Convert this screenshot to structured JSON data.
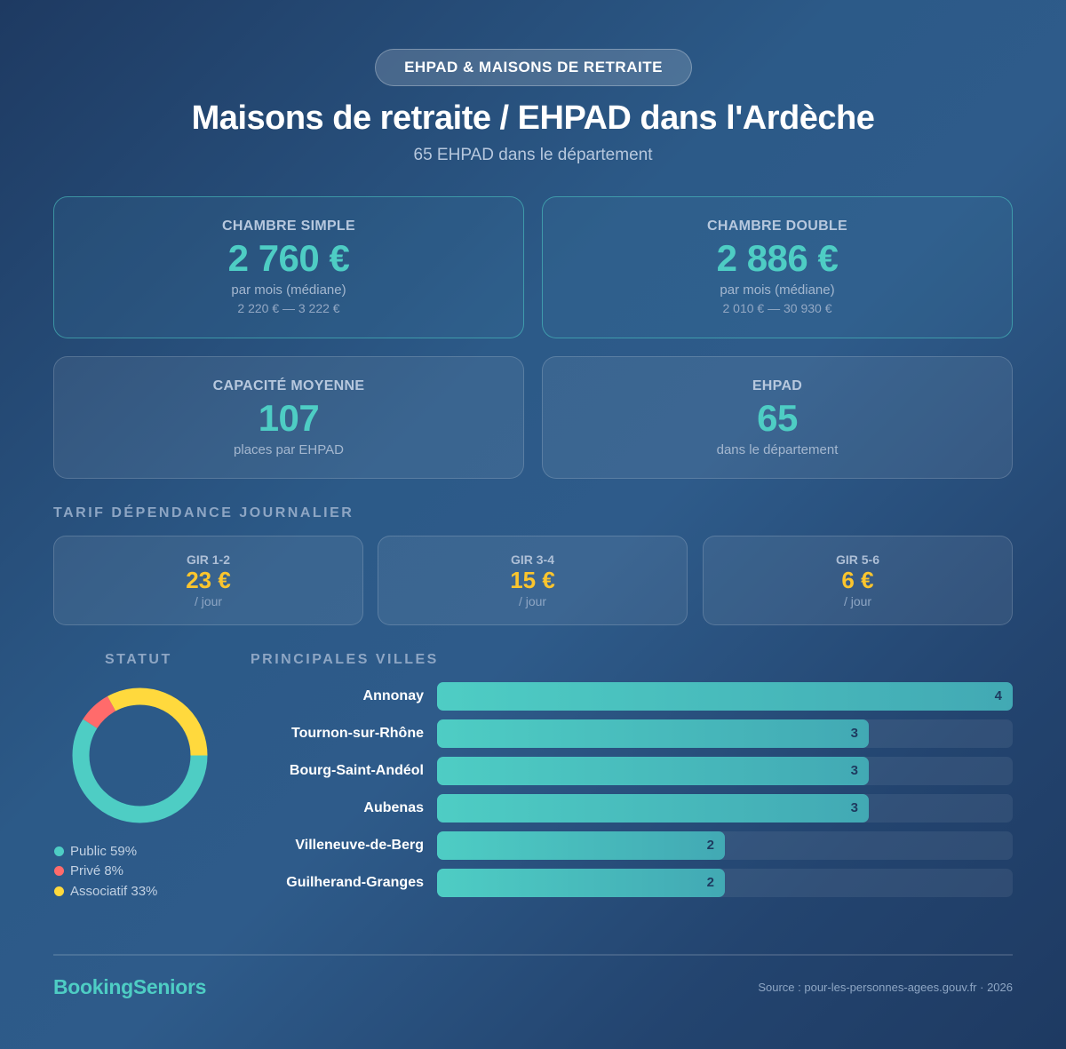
{
  "header": {
    "badge": "EHPAD & MAISONS DE RETRAITE",
    "title": "Maisons de retraite / EHPAD dans l'Ardèche",
    "subtitle": "65 EHPAD dans le département"
  },
  "stats": {
    "simple": {
      "label": "CHAMBRE SIMPLE",
      "value": "2 760 €",
      "sub": "par mois (médiane)",
      "range": "2 220 € — 3 222 €"
    },
    "double": {
      "label": "CHAMBRE DOUBLE",
      "value": "2 886 €",
      "sub": "par mois (médiane)",
      "range": "2 010 € — 30 930 €"
    },
    "capacity": {
      "label": "CAPACITÉ MOYENNE",
      "value": "107",
      "sub": "places par EHPAD"
    },
    "count": {
      "label": "EHPAD",
      "value": "65",
      "sub": "dans le département"
    }
  },
  "dependance": {
    "section_label": "TARIF DÉPENDANCE JOURNALIER",
    "items": [
      {
        "label": "GIR 1-2",
        "value": "23 €",
        "unit": "/ jour"
      },
      {
        "label": "GIR 3-4",
        "value": "15 €",
        "unit": "/ jour"
      },
      {
        "label": "GIR 5-6",
        "value": "6 €",
        "unit": "/ jour"
      }
    ]
  },
  "statut": {
    "section_label": "STATUT",
    "items": [
      {
        "label": "Public 59%",
        "name": "Public",
        "percent": 59,
        "color": "#4ecdc4"
      },
      {
        "label": "Privé 8%",
        "name": "Privé",
        "percent": 8,
        "color": "#ff6b6b"
      },
      {
        "label": "Associatif 33%",
        "name": "Associatif",
        "percent": 33,
        "color": "#ffd93d"
      }
    ]
  },
  "villes": {
    "section_label": "PRINCIPALES VILLES",
    "max": 4,
    "items": [
      {
        "name": "Annonay",
        "value": "4"
      },
      {
        "name": "Tournon-sur-Rhône",
        "value": "3"
      },
      {
        "name": "Bourg-Saint-Andéol",
        "value": "3"
      },
      {
        "name": "Aubenas",
        "value": "3"
      },
      {
        "name": "Villeneuve-de-Berg",
        "value": "2"
      },
      {
        "name": "Guilherand-Granges",
        "value": "2"
      }
    ]
  },
  "footer": {
    "logo": "BookingSeniors",
    "source": "Source : pour-les-personnes-agees.gouv.fr · 2026"
  },
  "colors": {
    "accent": "#4ecdc4",
    "gold": "#fbc52d",
    "public": "#4ecdc4",
    "prive": "#ff6b6b",
    "associatif": "#ffd93d"
  },
  "chart_data": [
    {
      "type": "pie",
      "title": "STATUT",
      "categories": [
        "Public",
        "Privé",
        "Associatif"
      ],
      "values": [
        59,
        8,
        33
      ],
      "colors": [
        "#4ecdc4",
        "#ff6b6b",
        "#ffd93d"
      ],
      "legend_position": "bottom"
    },
    {
      "type": "bar",
      "orientation": "horizontal",
      "title": "PRINCIPALES VILLES",
      "categories": [
        "Annonay",
        "Tournon-sur-Rhône",
        "Bourg-Saint-Andéol",
        "Aubenas",
        "Villeneuve-de-Berg",
        "Guilherand-Granges"
      ],
      "values": [
        4,
        3,
        3,
        3,
        2,
        2
      ],
      "xlim": [
        0,
        4
      ]
    }
  ]
}
